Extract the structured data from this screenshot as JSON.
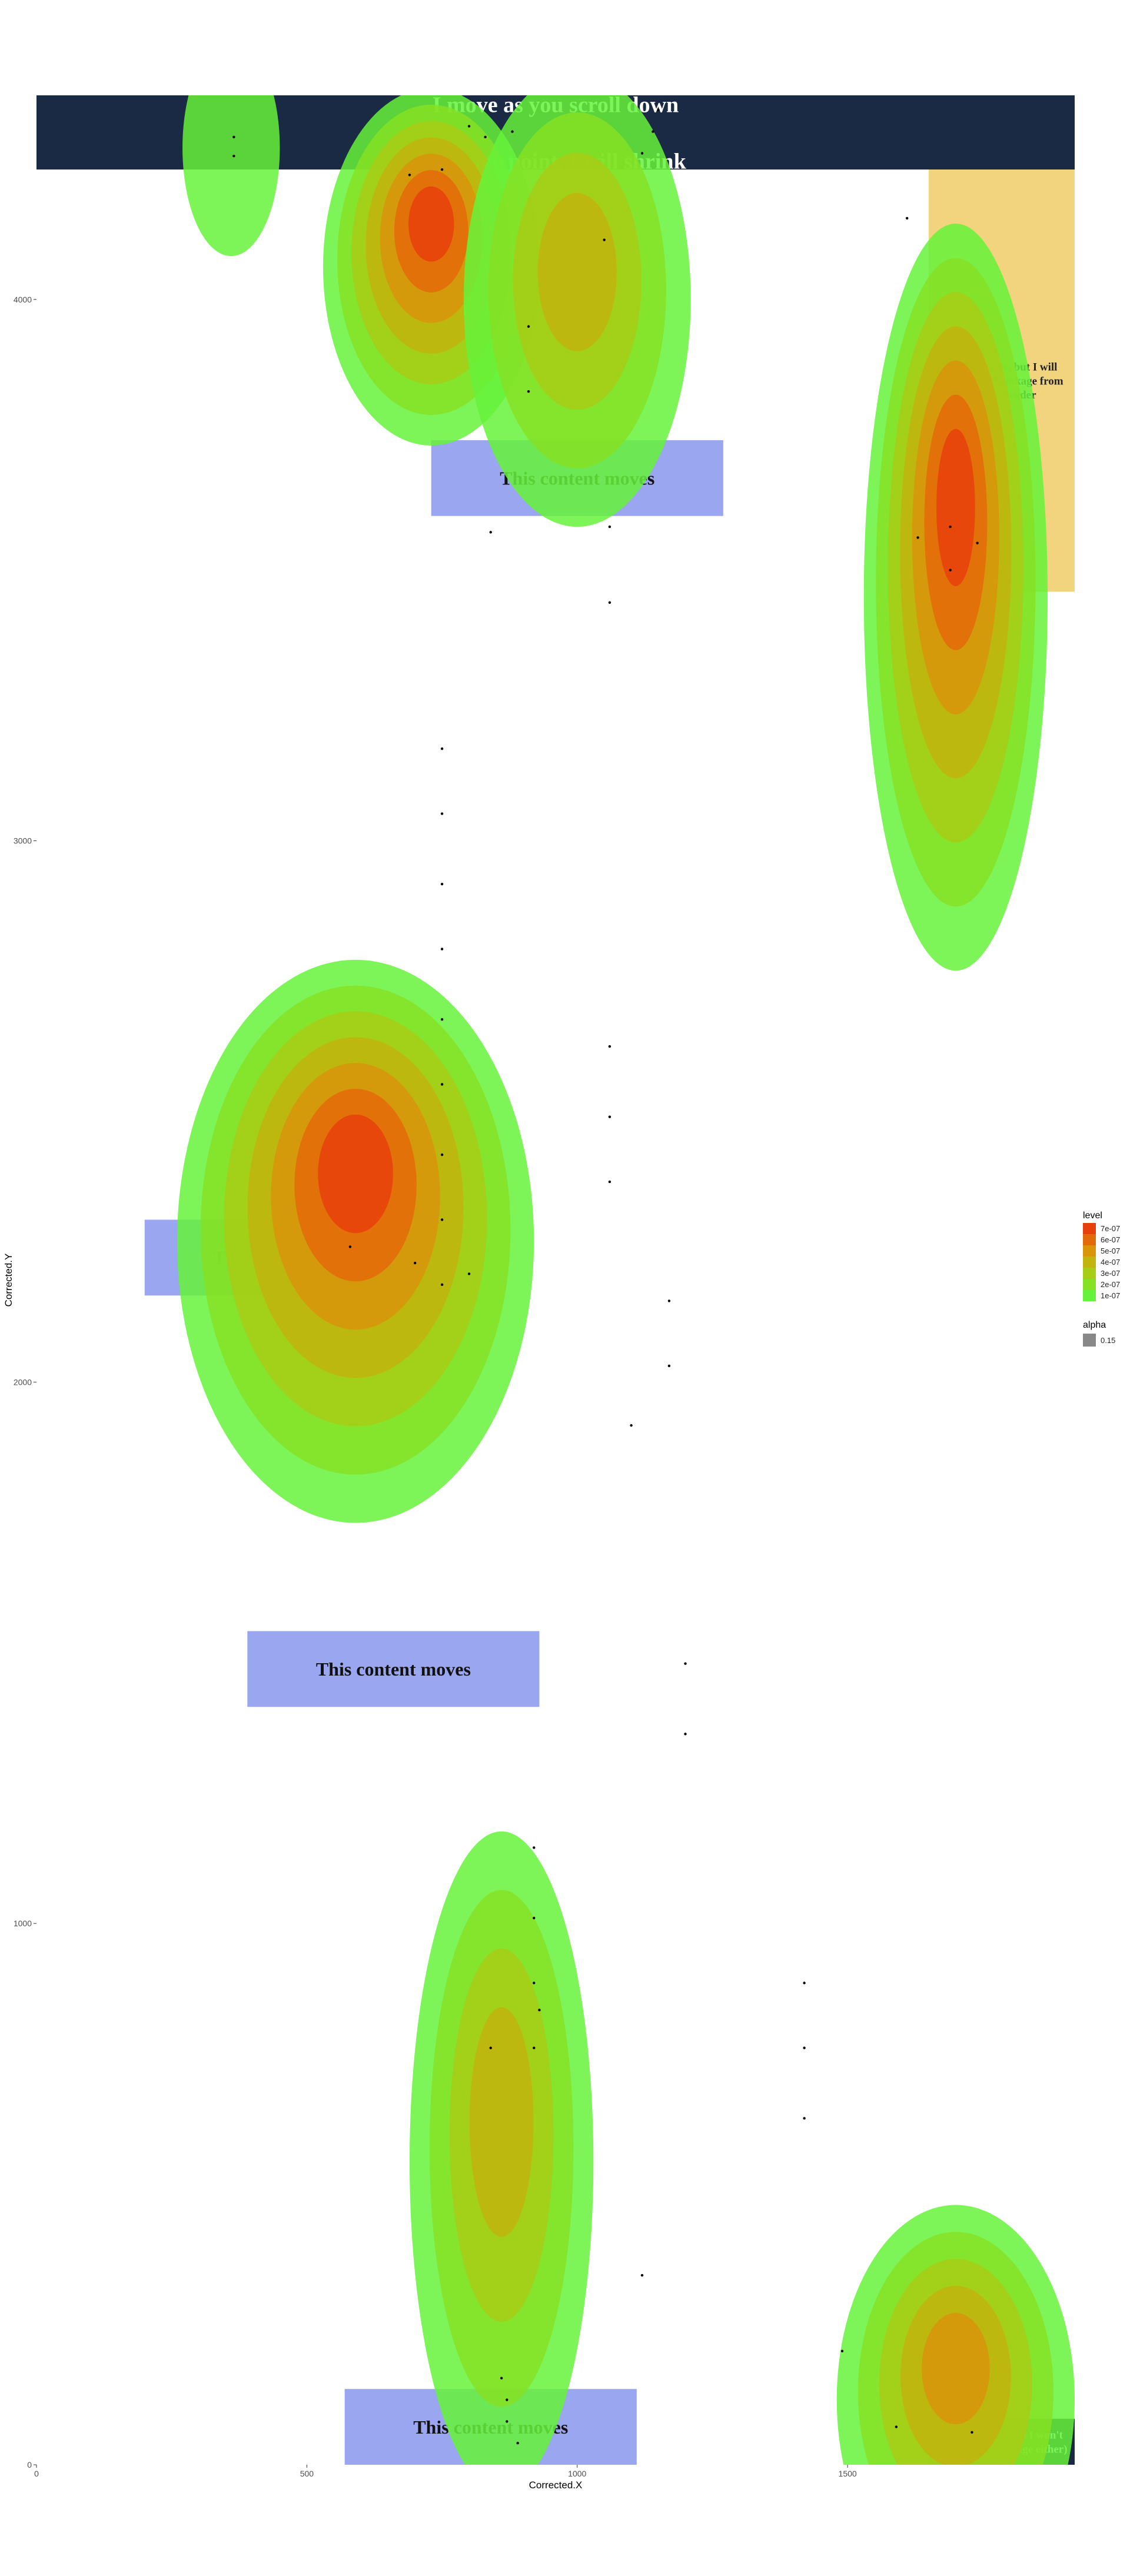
{
  "chart_data": {
    "type": "heatmap",
    "subtype": "2d-density-contour-with-scatter-overlay",
    "xlabel": "Corrected.X",
    "ylabel": "Corrected.Y",
    "xlim": [
      0,
      1920
    ],
    "ylim": [
      0,
      4377
    ],
    "x_ticks": [
      0,
      500,
      1000,
      1500
    ],
    "y_ticks": [
      0,
      1000,
      2000,
      3000,
      4000
    ],
    "grid": false,
    "legend_position": "right",
    "legend": {
      "level_title": "level",
      "level_labels": [
        "7e-07",
        "6e-07",
        "5e-07",
        "4e-07",
        "3e-07",
        "2e-07",
        "1e-07"
      ],
      "level_colors": [
        "#e8400c",
        "#e36a08",
        "#d9940a",
        "#c2b40e",
        "#a8cd16",
        "#86e024",
        "#66f23a"
      ],
      "alpha_title": "alpha",
      "alpha_label": "0.15",
      "alpha_color": "#888888"
    },
    "background_elements": [
      {
        "name": "top-header",
        "label_lines": [
          "I move as you scroll down",
          "At some point, I will shrink"
        ],
        "fill": "#1b2a44",
        "text_color": "#ffffff",
        "x": [
          0,
          1920
        ],
        "y": [
          4240,
          4377
        ]
      },
      {
        "name": "right-sidebar",
        "label_lines": [
          "I won't move, but I will",
          "follow the shrinkage from",
          "the top header"
        ],
        "fill": "#f2d47e",
        "text_color": "#222222",
        "x": [
          1650,
          1920
        ],
        "y": [
          3460,
          4240
        ]
      },
      {
        "name": "content-box-1",
        "label_lines": [
          "This content moves"
        ],
        "fill": "#9aa6ef",
        "text_color": "#111111",
        "x": [
          730,
          1270
        ],
        "y": [
          3600,
          3740
        ]
      },
      {
        "name": "content-box-2",
        "label_lines": [
          "This content moves"
        ],
        "fill": "#9aa6ef",
        "text_color": "#111111",
        "x": [
          200,
          740
        ],
        "y": [
          2160,
          2300
        ]
      },
      {
        "name": "content-box-3",
        "label_lines": [
          "This content moves"
        ],
        "fill": "#9aa6ef",
        "text_color": "#111111",
        "x": [
          390,
          930
        ],
        "y": [
          1400,
          1540
        ]
      },
      {
        "name": "content-box-4",
        "label_lines": [
          "This content moves"
        ],
        "fill": "#9aa6ef",
        "text_color": "#111111",
        "x": [
          570,
          1110
        ],
        "y": [
          0,
          140
        ]
      },
      {
        "name": "footer-box",
        "label_lines": [
          "I won't move, and I won't",
          "follow the shrinkage either)"
        ],
        "fill": "#1b2a44",
        "text_color": "#ffffff",
        "x": [
          1650,
          1920
        ],
        "y": [
          0,
          85
        ]
      }
    ],
    "density_clusters": [
      {
        "name": "cluster-top-left",
        "cx": 360,
        "cy": 4280,
        "rx": 90,
        "ry": 200,
        "levels": 1
      },
      {
        "name": "cluster-top-center",
        "cx": 730,
        "cy": 4060,
        "rx": 200,
        "ry": 330,
        "levels": 7
      },
      {
        "name": "cluster-top-center-right",
        "cx": 1000,
        "cy": 4000,
        "rx": 210,
        "ry": 420,
        "levels": 4
      },
      {
        "name": "cluster-right-column",
        "cx": 1700,
        "cy": 3450,
        "rx": 170,
        "ry": 690,
        "levels": 7
      },
      {
        "name": "cluster-middle-left",
        "cx": 590,
        "cy": 2260,
        "rx": 330,
        "ry": 520,
        "levels": 7
      },
      {
        "name": "cluster-bottom-center",
        "cx": 860,
        "cy": 560,
        "rx": 170,
        "ry": 610,
        "levels": 4
      },
      {
        "name": "cluster-bottom-right",
        "cx": 1700,
        "cy": 120,
        "rx": 220,
        "ry": 360,
        "levels": 5
      }
    ],
    "points": [
      {
        "x": 365,
        "y": 4300
      },
      {
        "x": 365,
        "y": 4265
      },
      {
        "x": 690,
        "y": 4230
      },
      {
        "x": 750,
        "y": 4240
      },
      {
        "x": 800,
        "y": 4320
      },
      {
        "x": 830,
        "y": 4300
      },
      {
        "x": 880,
        "y": 4310
      },
      {
        "x": 1120,
        "y": 4270
      },
      {
        "x": 1140,
        "y": 4310
      },
      {
        "x": 1150,
        "y": 4350
      },
      {
        "x": 1050,
        "y": 4110
      },
      {
        "x": 910,
        "y": 3950
      },
      {
        "x": 910,
        "y": 3830
      },
      {
        "x": 840,
        "y": 3570
      },
      {
        "x": 1060,
        "y": 3580
      },
      {
        "x": 1060,
        "y": 3440
      },
      {
        "x": 1610,
        "y": 4150
      },
      {
        "x": 1630,
        "y": 3560
      },
      {
        "x": 1690,
        "y": 3580
      },
      {
        "x": 1740,
        "y": 3550
      },
      {
        "x": 1690,
        "y": 3500
      },
      {
        "x": 750,
        "y": 3170
      },
      {
        "x": 750,
        "y": 3050
      },
      {
        "x": 750,
        "y": 2920
      },
      {
        "x": 750,
        "y": 2800
      },
      {
        "x": 750,
        "y": 2670
      },
      {
        "x": 750,
        "y": 2550
      },
      {
        "x": 750,
        "y": 2420
      },
      {
        "x": 750,
        "y": 2300
      },
      {
        "x": 750,
        "y": 2180
      },
      {
        "x": 800,
        "y": 2200
      },
      {
        "x": 700,
        "y": 2220
      },
      {
        "x": 580,
        "y": 2250
      },
      {
        "x": 1060,
        "y": 2620
      },
      {
        "x": 1060,
        "y": 2490
      },
      {
        "x": 1060,
        "y": 2370
      },
      {
        "x": 1170,
        "y": 2150
      },
      {
        "x": 1170,
        "y": 2030
      },
      {
        "x": 1100,
        "y": 1920
      },
      {
        "x": 1200,
        "y": 1480
      },
      {
        "x": 1200,
        "y": 1350
      },
      {
        "x": 920,
        "y": 1140
      },
      {
        "x": 920,
        "y": 1010
      },
      {
        "x": 920,
        "y": 890
      },
      {
        "x": 930,
        "y": 840
      },
      {
        "x": 920,
        "y": 770
      },
      {
        "x": 840,
        "y": 770
      },
      {
        "x": 1420,
        "y": 890
      },
      {
        "x": 1420,
        "y": 770
      },
      {
        "x": 1420,
        "y": 640
      },
      {
        "x": 1120,
        "y": 350
      },
      {
        "x": 1490,
        "y": 210
      },
      {
        "x": 860,
        "y": 160
      },
      {
        "x": 870,
        "y": 120
      },
      {
        "x": 870,
        "y": 80
      },
      {
        "x": 890,
        "y": 40
      },
      {
        "x": 1590,
        "y": 70
      },
      {
        "x": 1730,
        "y": 60
      }
    ]
  }
}
